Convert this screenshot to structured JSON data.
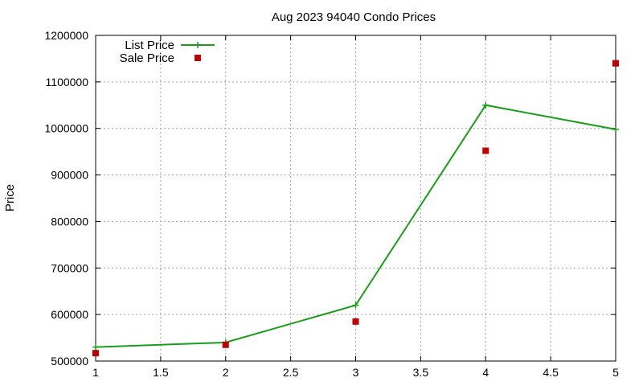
{
  "chart_data": {
    "type": "line",
    "title": "Aug 2023 94040 Condo Prices",
    "xlabel": "",
    "ylabel": "Price",
    "xlim": [
      1,
      5
    ],
    "ylim": [
      500000,
      1200000
    ],
    "x_ticks": [
      1,
      1.5,
      2,
      2.5,
      3,
      3.5,
      4,
      4.5,
      5
    ],
    "x_tick_labels": [
      "1",
      "1.5",
      "2",
      "2.5",
      "3",
      "3.5",
      "4",
      "4.5",
      "5"
    ],
    "y_ticks": [
      500000,
      600000,
      700000,
      800000,
      900000,
      1000000,
      1100000,
      1200000
    ],
    "y_tick_labels": [
      "500000",
      "600000",
      "700000",
      "800000",
      "900000",
      "1000000",
      "1100000",
      "1200000"
    ],
    "grid": true,
    "legend_position": "top-left",
    "series": [
      {
        "name": "List Price",
        "style": "linespoints",
        "color": "#1a9e1a",
        "x": [
          1,
          2,
          3,
          4,
          5
        ],
        "values": [
          530000,
          540000,
          620000,
          1050000,
          998000
        ]
      },
      {
        "name": "Sale Price",
        "style": "points",
        "color": "#c00000",
        "x": [
          1,
          2,
          3,
          4,
          5
        ],
        "values": [
          517000,
          535000,
          585000,
          952000,
          1140000
        ]
      }
    ]
  }
}
